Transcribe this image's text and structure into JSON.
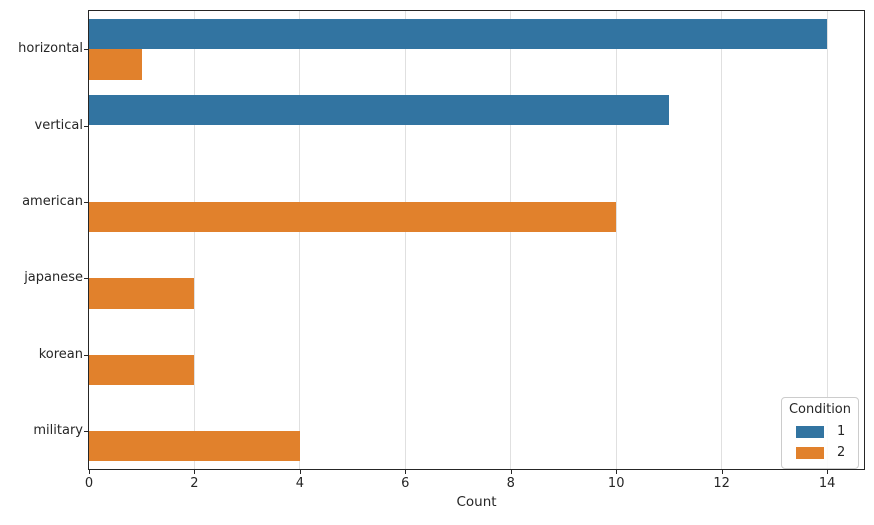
{
  "chart_data": {
    "type": "bar",
    "orientation": "horizontal",
    "title": "",
    "xlabel": "Count",
    "ylabel": "",
    "categories": [
      "horizontal",
      "vertical",
      "american",
      "japanese",
      "korean",
      "military"
    ],
    "series": [
      {
        "name": "1",
        "color": "#3274a1",
        "values": [
          14,
          11,
          null,
          null,
          null,
          null
        ]
      },
      {
        "name": "2",
        "color": "#e1812c",
        "values": [
          1,
          null,
          10,
          2,
          2,
          4
        ]
      }
    ],
    "xlim": [
      0,
      14.7
    ],
    "xticks": [
      0,
      2,
      4,
      6,
      8,
      10,
      12,
      14
    ],
    "grid": true,
    "grid_axis": "x",
    "background": "#ffffff",
    "legend": {
      "title": "Condition",
      "position": "lower right",
      "entries": [
        "1",
        "2"
      ]
    }
  }
}
